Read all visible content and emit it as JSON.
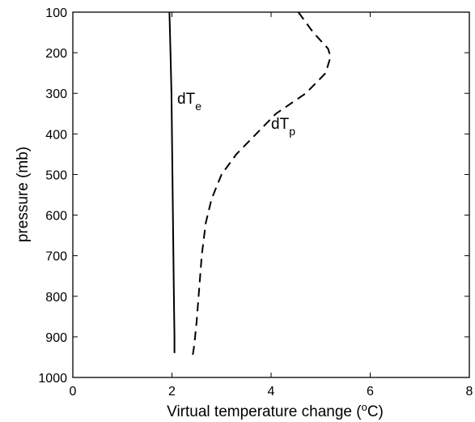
{
  "chart_data": {
    "type": "line",
    "title": "",
    "xlabel": "Virtual temperature change (",
    "xlabel_unit_sup": "o",
    "xlabel_unit_tail": "C)",
    "ylabel": "pressure (mb)",
    "xlim": [
      0,
      8
    ],
    "ylim": [
      100,
      1000
    ],
    "y_inverted": true,
    "xticks": [
      0,
      2,
      4,
      6,
      8
    ],
    "yticks": [
      100,
      200,
      300,
      400,
      500,
      600,
      700,
      800,
      900,
      1000
    ],
    "grid": false,
    "legend": "none",
    "series": [
      {
        "name": "dT",
        "name_sub": "e",
        "style": "solid",
        "color": "#000000",
        "x": [
          1.95,
          1.97,
          1.99,
          2.0,
          2.01,
          2.02,
          2.03,
          2.04,
          2.05,
          2.05
        ],
        "y": [
          100,
          200,
          300,
          400,
          500,
          600,
          700,
          800,
          900,
          940
        ]
      },
      {
        "name": "dT",
        "name_sub": "p",
        "style": "dashed",
        "color": "#000000",
        "x": [
          4.55,
          4.85,
          5.15,
          5.2,
          5.1,
          4.7,
          4.1,
          3.7,
          3.3,
          3.0,
          2.8,
          2.68,
          2.6,
          2.55,
          2.5,
          2.45,
          2.42
        ],
        "y": [
          100,
          150,
          190,
          210,
          250,
          300,
          350,
          400,
          450,
          500,
          560,
          620,
          700,
          780,
          860,
          920,
          945
        ]
      }
    ]
  }
}
